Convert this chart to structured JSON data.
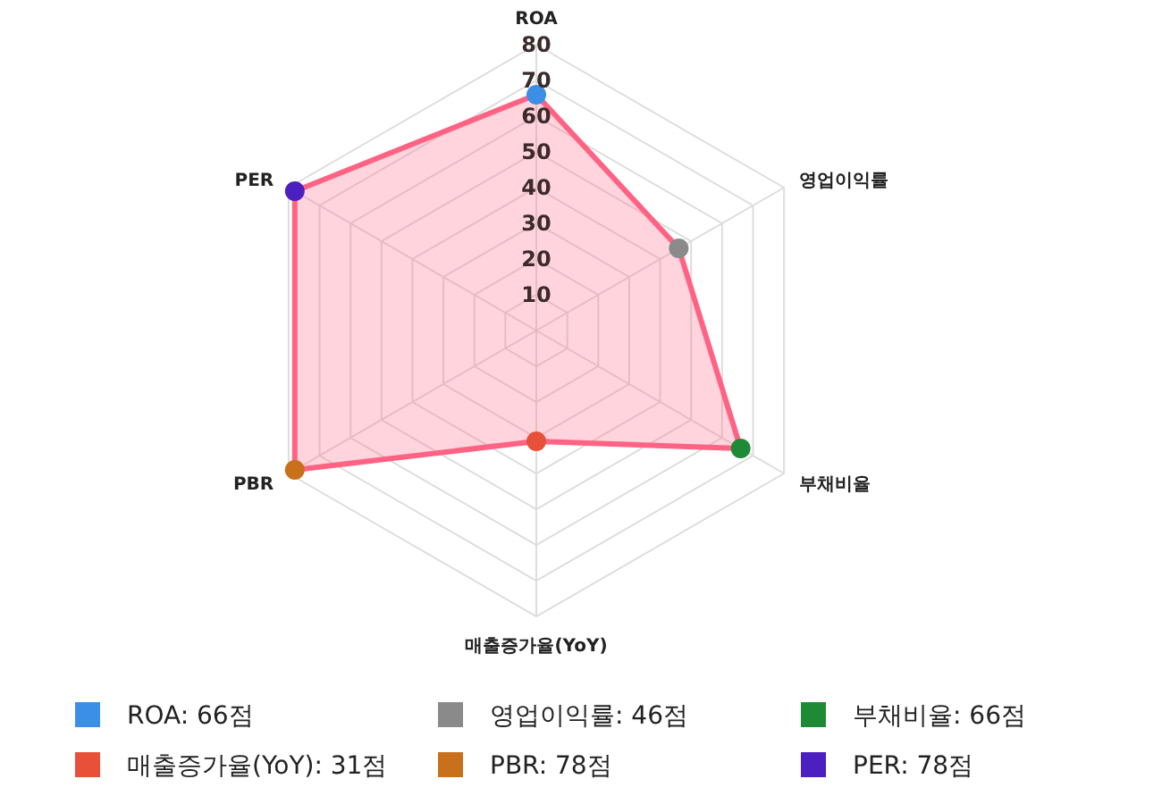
{
  "chart_data": {
    "type": "radar",
    "categories": [
      "ROA",
      "영업이익률",
      "부채비율",
      "매출증가율(YoY)",
      "PBR",
      "PER"
    ],
    "series": [
      {
        "color": "#ff6384",
        "values": [
          66,
          46,
          66,
          31,
          78,
          78
        ]
      }
    ],
    "colors": [
      "#3b8fe6",
      "#8a8a8a",
      "#1e8a36",
      "#e8503a",
      "#c8701a",
      "#4b1fc0"
    ],
    "ylim": [
      0,
      80
    ],
    "yticks": [
      10,
      20,
      30,
      40,
      50,
      60,
      70,
      80
    ],
    "grid": true,
    "marker": "circle",
    "annotations": [
      "ROA: 66점",
      "영업이익률: 46점",
      "부채비율: 66점",
      "매출증가율(YoY): 31점",
      "PBR: 78점",
      "PER: 78점"
    ]
  }
}
